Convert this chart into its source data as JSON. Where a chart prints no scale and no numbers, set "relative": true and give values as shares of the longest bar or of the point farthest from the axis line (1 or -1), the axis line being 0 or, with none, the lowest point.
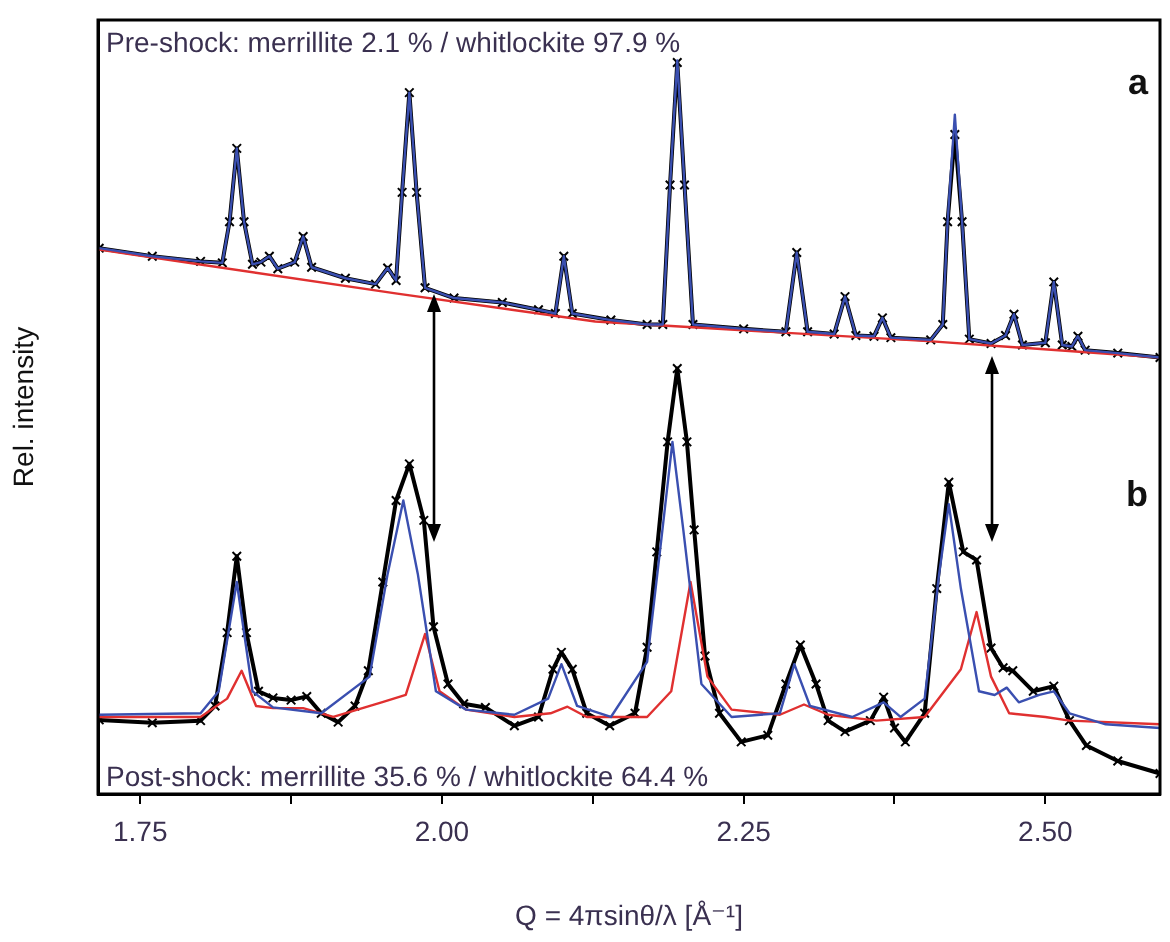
{
  "chart_data": {
    "type": "line",
    "relative": true,
    "xlabel": "Q = 4πsinθ/λ [Å⁻¹]",
    "ylabel": "Rel. intensity",
    "annotations": [
      "Pre-shock: merrillite 2.1 % / whitlockite 97.9 %",
      "a",
      "b",
      "Post-shock: merrillite 35.6 % / whitlockite 64.4 %"
    ],
    "xlim": [
      1.715,
      2.595
    ],
    "xticks": [
      {
        "value": 1.75,
        "label": "1.75"
      },
      {
        "value": 1.875,
        "label": null
      },
      {
        "value": 2.0,
        "label": "2.00"
      },
      {
        "value": 2.125,
        "label": null
      },
      {
        "value": 2.25,
        "label": "2.25"
      },
      {
        "value": 2.375,
        "label": null
      },
      {
        "value": 2.5,
        "label": "2.50"
      }
    ],
    "legend": false,
    "grid": false,
    "series": [
      {
        "color": "#000000",
        "marker": "cross",
        "x": [
          1.716,
          1.76,
          1.8,
          1.818,
          1.824,
          1.83,
          1.836,
          1.843,
          1.85,
          1.857,
          1.864,
          1.878,
          1.885,
          1.892,
          1.92,
          1.945,
          1.955,
          1.962,
          1.967,
          1.973,
          1.979,
          1.986,
          2.01,
          2.05,
          2.08,
          2.094,
          2.101,
          2.108,
          2.14,
          2.17,
          2.183,
          2.189,
          2.195,
          2.201,
          2.208,
          2.25,
          2.285,
          2.294,
          2.303,
          2.325,
          2.334,
          2.343,
          2.358,
          2.365,
          2.372,
          2.405,
          2.415,
          2.419,
          2.425,
          2.431,
          2.437,
          2.455,
          2.467,
          2.474,
          2.481,
          2.5,
          2.507,
          2.514,
          2.522,
          2.527,
          2.533,
          2.56,
          2.595
        ],
        "values": [
          0.744,
          0.733,
          0.726,
          0.724,
          0.78,
          0.88,
          0.78,
          0.722,
          0.725,
          0.733,
          0.716,
          0.725,
          0.76,
          0.718,
          0.703,
          0.695,
          0.717,
          0.7,
          0.82,
          0.956,
          0.82,
          0.69,
          0.676,
          0.67,
          0.66,
          0.655,
          0.733,
          0.655,
          0.646,
          0.64,
          0.64,
          0.83,
          0.997,
          0.83,
          0.64,
          0.634,
          0.63,
          0.738,
          0.63,
          0.627,
          0.678,
          0.625,
          0.624,
          0.649,
          0.622,
          0.619,
          0.64,
          0.78,
          0.899,
          0.78,
          0.62,
          0.614,
          0.625,
          0.654,
          0.612,
          0.615,
          0.698,
          0.612,
          0.61,
          0.624,
          0.605,
          0.601,
          0.595
        ]
      },
      {
        "color": "#3a4fb0",
        "marker": "none",
        "x": [
          1.716,
          1.76,
          1.8,
          1.818,
          1.824,
          1.83,
          1.836,
          1.843,
          1.85,
          1.857,
          1.864,
          1.878,
          1.885,
          1.892,
          1.92,
          1.945,
          1.955,
          1.962,
          1.967,
          1.973,
          1.979,
          1.986,
          2.01,
          2.05,
          2.08,
          2.094,
          2.101,
          2.108,
          2.14,
          2.17,
          2.183,
          2.189,
          2.195,
          2.201,
          2.208,
          2.25,
          2.285,
          2.294,
          2.303,
          2.325,
          2.334,
          2.343,
          2.358,
          2.365,
          2.372,
          2.405,
          2.415,
          2.419,
          2.425,
          2.431,
          2.437,
          2.455,
          2.467,
          2.474,
          2.481,
          2.5,
          2.507,
          2.514,
          2.522,
          2.527,
          2.533,
          2.56,
          2.595
        ],
        "values": [
          0.744,
          0.733,
          0.726,
          0.724,
          0.78,
          0.88,
          0.78,
          0.722,
          0.725,
          0.733,
          0.716,
          0.725,
          0.76,
          0.718,
          0.703,
          0.695,
          0.717,
          0.7,
          0.82,
          0.956,
          0.82,
          0.69,
          0.676,
          0.67,
          0.66,
          0.655,
          0.733,
          0.655,
          0.646,
          0.64,
          0.64,
          0.83,
          1.0,
          0.83,
          0.64,
          0.634,
          0.63,
          0.738,
          0.63,
          0.627,
          0.678,
          0.625,
          0.624,
          0.649,
          0.622,
          0.619,
          0.64,
          0.78,
          0.926,
          0.78,
          0.62,
          0.614,
          0.625,
          0.654,
          0.612,
          0.615,
          0.698,
          0.612,
          0.61,
          0.624,
          0.605,
          0.601,
          0.595
        ]
      },
      {
        "color": "#e03030",
        "marker": "none",
        "x": [
          1.716,
          1.963,
          2.127,
          2.406,
          2.595
        ],
        "values": [
          0.742,
          0.682,
          0.644,
          0.617,
          0.595
        ]
      },
      {
        "color": "#000000",
        "marker": "cross",
        "x": [
          1.716,
          1.76,
          1.8,
          1.812,
          1.822,
          1.83,
          1.838,
          1.848,
          1.86,
          1.875,
          1.888,
          1.9,
          1.914,
          1.928,
          1.939,
          1.951,
          1.962,
          1.973,
          1.985,
          1.993,
          2.005,
          2.018,
          2.036,
          2.06,
          2.08,
          2.092,
          2.099,
          2.108,
          2.12,
          2.139,
          2.16,
          2.17,
          2.178,
          2.187,
          2.195,
          2.203,
          2.209,
          2.218,
          2.23,
          2.248,
          2.27,
          2.285,
          2.297,
          2.31,
          2.32,
          2.334,
          2.355,
          2.366,
          2.375,
          2.384,
          2.4,
          2.41,
          2.42,
          2.432,
          2.443,
          2.455,
          2.465,
          2.473,
          2.49,
          2.507,
          2.52,
          2.534,
          2.56,
          2.595
        ],
        "values": [
          0.101,
          0.097,
          0.1,
          0.12,
          0.22,
          0.324,
          0.22,
          0.14,
          0.131,
          0.128,
          0.133,
          0.11,
          0.098,
          0.12,
          0.168,
          0.289,
          0.4,
          0.45,
          0.373,
          0.228,
          0.15,
          0.123,
          0.118,
          0.093,
          0.105,
          0.17,
          0.193,
          0.17,
          0.11,
          0.093,
          0.11,
          0.2,
          0.33,
          0.48,
          0.58,
          0.48,
          0.36,
          0.188,
          0.11,
          0.071,
          0.08,
          0.15,
          0.203,
          0.15,
          0.1,
          0.085,
          0.1,
          0.132,
          0.09,
          0.071,
          0.11,
          0.28,
          0.425,
          0.33,
          0.319,
          0.199,
          0.172,
          0.168,
          0.14,
          0.147,
          0.1,
          0.066,
          0.045,
          0.028
        ]
      },
      {
        "color": "#3a4fb0",
        "marker": "none",
        "x": [
          1.716,
          1.8,
          1.815,
          1.83,
          1.843,
          1.86,
          1.9,
          1.94,
          1.955,
          1.968,
          1.98,
          1.995,
          2.02,
          2.06,
          2.088,
          2.099,
          2.112,
          2.14,
          2.17,
          2.182,
          2.191,
          2.2,
          2.215,
          2.24,
          2.28,
          2.292,
          2.305,
          2.34,
          2.366,
          2.38,
          2.4,
          2.412,
          2.42,
          2.43,
          2.445,
          2.458,
          2.468,
          2.478,
          2.495,
          2.507,
          2.52,
          2.55,
          2.595
        ],
        "values": [
          0.108,
          0.11,
          0.14,
          0.289,
          0.14,
          0.118,
          0.11,
          0.16,
          0.3,
          0.4,
          0.3,
          0.14,
          0.115,
          0.108,
          0.13,
          0.177,
          0.12,
          0.105,
          0.18,
          0.35,
          0.48,
          0.36,
          0.15,
          0.105,
          0.11,
          0.177,
          0.12,
          0.105,
          0.125,
          0.105,
          0.13,
          0.3,
          0.395,
          0.28,
          0.14,
          0.135,
          0.145,
          0.125,
          0.135,
          0.14,
          0.11,
          0.095,
          0.09
        ]
      },
      {
        "color": "#e03030",
        "marker": "none",
        "x": [
          1.716,
          1.8,
          1.822,
          1.834,
          1.846,
          1.86,
          1.885,
          1.91,
          1.95,
          1.97,
          1.986,
          1.998,
          2.02,
          2.06,
          2.09,
          2.104,
          2.12,
          2.17,
          2.19,
          2.206,
          2.22,
          2.24,
          2.28,
          2.3,
          2.32,
          2.36,
          2.4,
          2.43,
          2.443,
          2.455,
          2.47,
          2.5,
          2.52,
          2.595
        ],
        "values": [
          0.105,
          0.105,
          0.13,
          0.168,
          0.12,
          0.117,
          0.117,
          0.105,
          0.125,
          0.135,
          0.218,
          0.14,
          0.115,
          0.105,
          0.11,
          0.119,
          0.105,
          0.105,
          0.14,
          0.289,
          0.16,
          0.115,
          0.108,
          0.122,
          0.108,
          0.1,
          0.105,
          0.17,
          0.248,
          0.16,
          0.11,
          0.105,
          0.1,
          0.095
        ]
      }
    ]
  }
}
